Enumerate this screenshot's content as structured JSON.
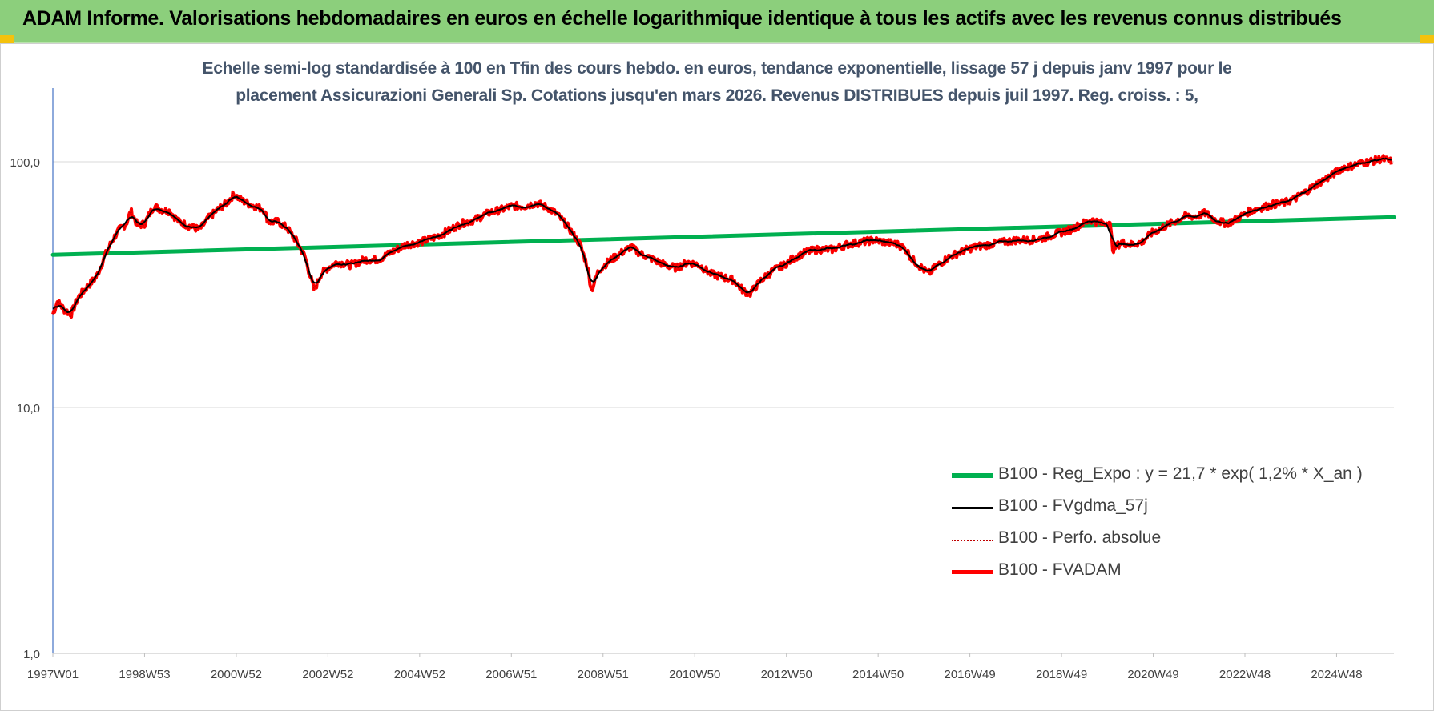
{
  "header": {
    "title": "ADAM Informe. Valorisations hebdomadaires en euros en échelle logarithmique identique à tous les actifs avec les revenus connus distribués"
  },
  "colors": {
    "header_bg": "#8ccf7c",
    "corner_accent": "#f4c20d",
    "reg_expo": "#00b050",
    "fvgdma": "#000000",
    "perfo": "#c00000",
    "fvadam": "#ff0000",
    "grid": "#d9d9d9",
    "axis": "#4472c4"
  },
  "chart_data": {
    "type": "line",
    "subtitle_line1": "Echelle semi-log standardisée à 100 en Tfin des cours hebdo. en euros, tendance exponentielle, lissage 57 j depuis janv 1997 pour le",
    "subtitle_line2": "placement Assicurazioni Generali Sp. Cotations jusqu'en mars 2026. Revenus DISTRIBUES depuis juil 1997. Reg. croiss. : 5,",
    "y_scale": "log",
    "ylim": [
      1,
      200
    ],
    "y_ticks": [
      "1,0",
      "10,0",
      "100,0"
    ],
    "y_tick_values": [
      1,
      10,
      100
    ],
    "xlim": [
      1997.0,
      2026.25
    ],
    "x_ticks": [
      "1997W01",
      "1998W53",
      "2000W52",
      "2002W52",
      "2004W52",
      "2006W51",
      "2008W51",
      "2010W50",
      "2012W50",
      "2014W50",
      "2016W49",
      "2018W49",
      "2020W49",
      "2022W48",
      "2024W48"
    ],
    "x_tick_values": [
      1997.0,
      1999.0,
      2001.0,
      2003.0,
      2005.0,
      2007.0,
      2009.0,
      2011.0,
      2013.0,
      2015.0,
      2017.0,
      2019.0,
      2021.0,
      2023.0,
      2025.0
    ],
    "grid": "horizontal",
    "legend_position": "bottom-right",
    "fvadam_points": [
      [
        1997.0,
        24
      ],
      [
        1997.1,
        27
      ],
      [
        1997.25,
        25
      ],
      [
        1997.4,
        24
      ],
      [
        1997.55,
        28
      ],
      [
        1997.75,
        31
      ],
      [
        1997.95,
        34
      ],
      [
        1998.15,
        42
      ],
      [
        1998.3,
        48
      ],
      [
        1998.45,
        53
      ],
      [
        1998.6,
        56
      ],
      [
        1998.7,
        63
      ],
      [
        1998.85,
        55
      ],
      [
        1999.0,
        56
      ],
      [
        1999.2,
        66
      ],
      [
        1999.35,
        64
      ],
      [
        1999.55,
        63
      ],
      [
        1999.75,
        57
      ],
      [
        1999.95,
        55
      ],
      [
        2000.2,
        53
      ],
      [
        2000.4,
        59
      ],
      [
        2000.6,
        64
      ],
      [
        2000.8,
        68
      ],
      [
        2000.95,
        74
      ],
      [
        2001.1,
        70
      ],
      [
        2001.3,
        67
      ],
      [
        2001.5,
        65
      ],
      [
        2001.6,
        64
      ],
      [
        2001.7,
        57
      ],
      [
        2001.9,
        57
      ],
      [
        2002.1,
        54
      ],
      [
        2002.3,
        48
      ],
      [
        2002.5,
        41
      ],
      [
        2002.6,
        35
      ],
      [
        2002.7,
        30
      ],
      [
        2002.85,
        35
      ],
      [
        2003.0,
        37
      ],
      [
        2003.2,
        39
      ],
      [
        2003.5,
        38
      ],
      [
        2003.8,
        40
      ],
      [
        2004.1,
        40
      ],
      [
        2004.4,
        43
      ],
      [
        2004.7,
        46
      ],
      [
        2005.0,
        47
      ],
      [
        2005.3,
        49
      ],
      [
        2005.6,
        52
      ],
      [
        2005.9,
        56
      ],
      [
        2006.2,
        58
      ],
      [
        2006.5,
        62
      ],
      [
        2006.8,
        64
      ],
      [
        2007.0,
        66
      ],
      [
        2007.3,
        66
      ],
      [
        2007.55,
        68
      ],
      [
        2007.8,
        65
      ],
      [
        2008.0,
        61
      ],
      [
        2008.25,
        54
      ],
      [
        2008.5,
        46
      ],
      [
        2008.65,
        38
      ],
      [
        2008.75,
        30
      ],
      [
        2008.9,
        36
      ],
      [
        2009.1,
        39
      ],
      [
        2009.35,
        42
      ],
      [
        2009.6,
        45
      ],
      [
        2009.85,
        42
      ],
      [
        2010.1,
        40
      ],
      [
        2010.35,
        38
      ],
      [
        2010.6,
        37
      ],
      [
        2010.85,
        39
      ],
      [
        2011.1,
        38
      ],
      [
        2011.35,
        35
      ],
      [
        2011.6,
        34
      ],
      [
        2011.85,
        33
      ],
      [
        2012.05,
        30
      ],
      [
        2012.2,
        29
      ],
      [
        2012.45,
        33
      ],
      [
        2012.7,
        36
      ],
      [
        2012.95,
        38
      ],
      [
        2013.2,
        41
      ],
      [
        2013.45,
        43
      ],
      [
        2013.7,
        44
      ],
      [
        2014.0,
        44
      ],
      [
        2014.3,
        46
      ],
      [
        2014.6,
        47
      ],
      [
        2014.9,
        48
      ],
      [
        2015.2,
        47
      ],
      [
        2015.45,
        46
      ],
      [
        2015.6,
        44
      ],
      [
        2015.75,
        40
      ],
      [
        2015.95,
        37
      ],
      [
        2016.1,
        35
      ],
      [
        2016.3,
        38
      ],
      [
        2016.55,
        41
      ],
      [
        2016.8,
        43
      ],
      [
        2017.1,
        45
      ],
      [
        2017.4,
        46
      ],
      [
        2017.7,
        47
      ],
      [
        2018.0,
        48
      ],
      [
        2018.3,
        48
      ],
      [
        2018.6,
        49
      ],
      [
        2018.9,
        51
      ],
      [
        2019.2,
        53
      ],
      [
        2019.45,
        56
      ],
      [
        2019.65,
        58
      ],
      [
        2019.9,
        56
      ],
      [
        2020.05,
        57
      ],
      [
        2020.12,
        44
      ],
      [
        2020.3,
        47
      ],
      [
        2020.5,
        46
      ],
      [
        2020.75,
        47
      ],
      [
        2020.95,
        51
      ],
      [
        2021.2,
        54
      ],
      [
        2021.45,
        57
      ],
      [
        2021.7,
        60
      ],
      [
        2021.95,
        60
      ],
      [
        2022.15,
        62
      ],
      [
        2022.35,
        58
      ],
      [
        2022.6,
        56
      ],
      [
        2022.85,
        59
      ],
      [
        2023.1,
        63
      ],
      [
        2023.35,
        65
      ],
      [
        2023.6,
        67
      ],
      [
        2023.85,
        68
      ],
      [
        2024.1,
        71
      ],
      [
        2024.35,
        76
      ],
      [
        2024.6,
        82
      ],
      [
        2024.85,
        87
      ],
      [
        2025.1,
        94
      ],
      [
        2025.3,
        96
      ],
      [
        2025.55,
        99
      ],
      [
        2025.8,
        101
      ],
      [
        2026.0,
        103
      ],
      [
        2026.2,
        100
      ]
    ],
    "series": [
      {
        "name": "B100 - Reg_Expo : y = 21,7 * exp( 1,2% *  X_an )",
        "style": "thick-solid",
        "color": "#00b050",
        "width": 5
      },
      {
        "name": "B100 - FVgdma_57j",
        "style": "solid",
        "color": "#000000",
        "width": 2
      },
      {
        "name": "B100 - Perfo. absolue",
        "style": "dotted",
        "color": "#c00000",
        "width": 1.5
      },
      {
        "name": "B100 - FVADAM",
        "style": "thick-solid",
        "color": "#ff0000",
        "width": 4
      }
    ],
    "reg_expo": {
      "start_value": 41.8,
      "end_value": 59.5
    }
  }
}
